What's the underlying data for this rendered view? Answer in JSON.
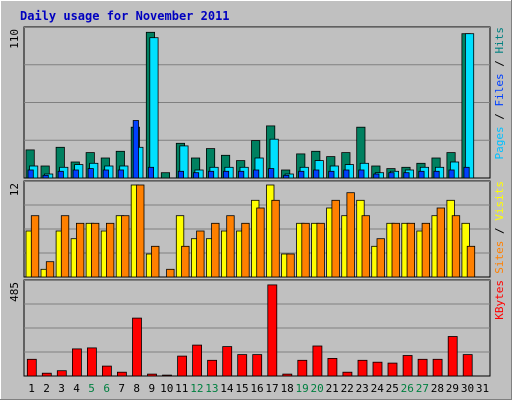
{
  "chart_data": {
    "type": "bar",
    "title": "Daily usage for November 2011",
    "days": [
      "1",
      "2",
      "3",
      "4",
      "5",
      "6",
      "7",
      "8",
      "9",
      "10",
      "11",
      "12",
      "13",
      "14",
      "15",
      "16",
      "17",
      "18",
      "19",
      "20",
      "21",
      "22",
      "23",
      "24",
      "25",
      "26",
      "27",
      "28",
      "29",
      "30",
      "31"
    ],
    "weekend_days": [
      "5",
      "6",
      "12",
      "13",
      "19",
      "20",
      "26",
      "27"
    ],
    "colors": {
      "hits": "#008080",
      "files": "#00e0ff",
      "pages": "#0040ff",
      "visits": "#ffff00",
      "sites": "#ff8000",
      "kbytes": "#ff0000",
      "title": "#0000c0",
      "weekend_label": "#008040",
      "plot_bg": "#c0c0c0",
      "frame_bg": "#c0c0c0"
    },
    "panels": [
      {
        "name": "hits-files-pages",
        "ymax_label": "110",
        "ymax": 110,
        "legend": [
          {
            "text": "Pages",
            "color": "#00c0ff"
          },
          {
            "text": " / ",
            "color": "#000000"
          },
          {
            "text": "Files",
            "color": "#0040ff"
          },
          {
            "text": " / ",
            "color": "#000000"
          },
          {
            "text": "Hits",
            "color": "#008080"
          }
        ],
        "series": [
          {
            "name": "Hits",
            "color": "#008060",
            "values": [
              21,
              9,
              23,
              12,
              19,
              15,
              20,
              38,
              109,
              4,
              26,
              15,
              22,
              17,
              13,
              28,
              39,
              6,
              18,
              20,
              16,
              19,
              38,
              9,
              7,
              8,
              11,
              15,
              19,
              108
            ]
          },
          {
            "name": "Files",
            "color": "#00e0ff",
            "values": [
              9,
              3,
              8,
              10,
              11,
              9,
              9,
              23,
              105,
              0,
              24,
              6,
              8,
              8,
              8,
              15,
              29,
              3,
              8,
              13,
              9,
              10,
              11,
              4,
              5,
              6,
              8,
              8,
              12,
              108
            ]
          },
          {
            "name": "Pages",
            "color": "#0040ff",
            "values": [
              6,
              2,
              5,
              6,
              7,
              6,
              6,
              43,
              8,
              0,
              5,
              4,
              5,
              5,
              5,
              6,
              7,
              2,
              5,
              6,
              5,
              6,
              6,
              3,
              4,
              4,
              5,
              5,
              6,
              8
            ]
          }
        ]
      },
      {
        "name": "visits-sites",
        "ymax_label": "12",
        "ymax": 12,
        "legend": [
          {
            "text": "Sites",
            "color": "#ff8000"
          },
          {
            "text": " / ",
            "color": "#000000"
          },
          {
            "text": "Visits",
            "color": "#ffff00"
          }
        ],
        "series": [
          {
            "name": "Visits",
            "color": "#ffff00",
            "values": [
              6,
              1,
              6,
              5,
              7,
              6,
              8,
              13,
              3,
              0,
              8,
              5,
              5,
              6,
              6,
              10,
              15,
              3,
              7,
              7,
              9,
              8,
              10,
              4,
              7,
              7,
              6,
              8,
              10,
              7
            ]
          },
          {
            "name": "Sites",
            "color": "#ff8000",
            "values": [
              8,
              2,
              8,
              7,
              7,
              7,
              8,
              12,
              4,
              1,
              4,
              6,
              7,
              8,
              7,
              9,
              10,
              3,
              7,
              7,
              10,
              11,
              8,
              5,
              7,
              7,
              7,
              9,
              8,
              4
            ]
          }
        ]
      },
      {
        "name": "kbytes",
        "ymax_label": "485",
        "ymax": 485,
        "legend": [
          {
            "text": "KBytes",
            "color": "#ff0000"
          }
        ],
        "series": [
          {
            "name": "KBytes",
            "color": "#ff0000",
            "values": [
              88,
              15,
              28,
              143,
              148,
              52,
              20,
              305,
              10,
              5,
              105,
              163,
              83,
              155,
              113,
              113,
              480,
              10,
              83,
              158,
              93,
              20,
              83,
              73,
              68,
              108,
              88,
              88,
              208,
              113
            ]
          }
        ]
      }
    ]
  }
}
